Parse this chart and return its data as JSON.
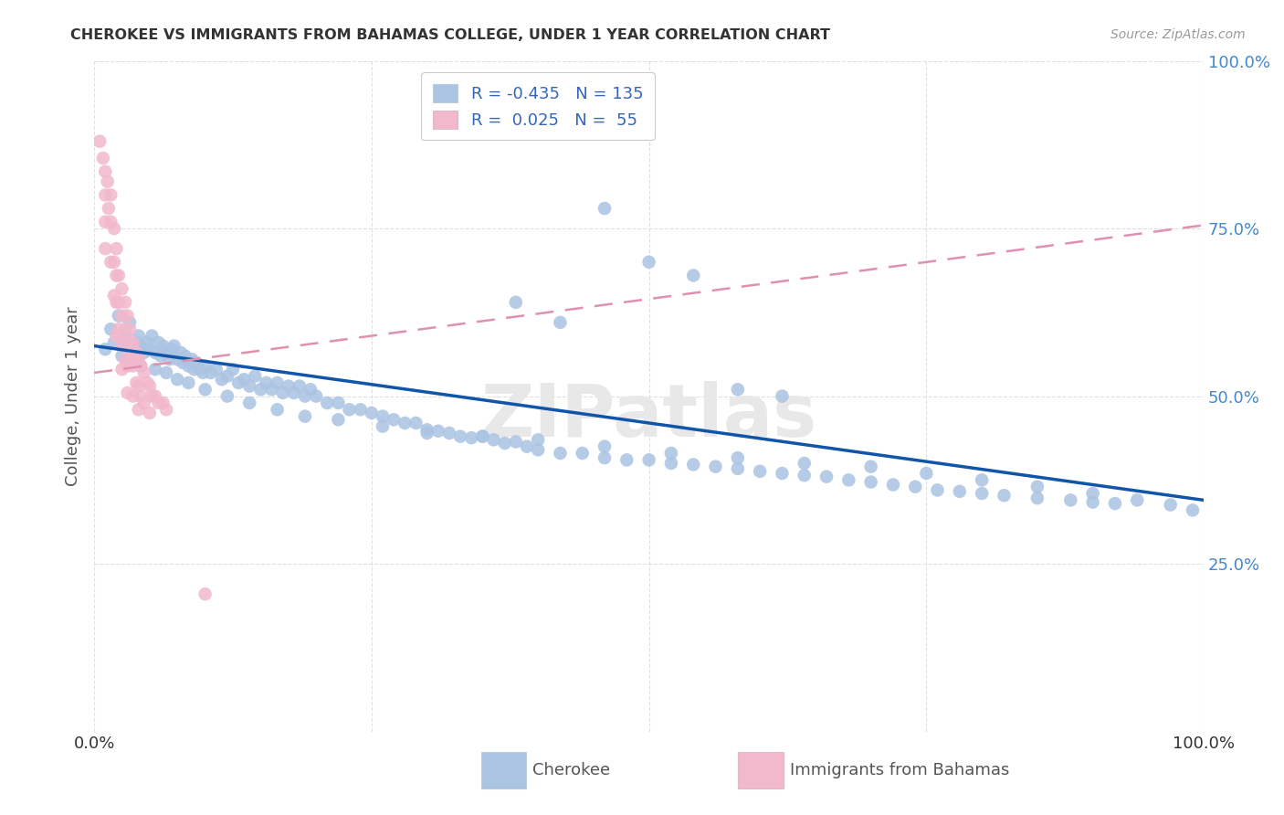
{
  "title": "CHEROKEE VS IMMIGRANTS FROM BAHAMAS COLLEGE, UNDER 1 YEAR CORRELATION CHART",
  "source": "Source: ZipAtlas.com",
  "ylabel": "College, Under 1 year",
  "xlim": [
    0.0,
    1.0
  ],
  "ylim": [
    0.0,
    1.0
  ],
  "yticks": [
    0.25,
    0.5,
    0.75,
    1.0
  ],
  "ytick_labels": [
    "25.0%",
    "50.0%",
    "75.0%",
    "100.0%"
  ],
  "xticks": [
    0.0,
    0.25,
    0.5,
    0.75,
    1.0
  ],
  "xtick_labels": [
    "0.0%",
    "",
    "",
    "",
    "100.0%"
  ],
  "blue_R": -0.435,
  "blue_N": 135,
  "pink_R": 0.025,
  "pink_N": 55,
  "blue_color": "#aac4e2",
  "pink_color": "#f2b8cc",
  "blue_line_color": "#1155aa",
  "pink_line_color": "#e090b0",
  "background_color": "#ffffff",
  "watermark": "ZIPatlas",
  "blue_line_x0": 0.0,
  "blue_line_y0": 0.575,
  "blue_line_x1": 1.0,
  "blue_line_y1": 0.345,
  "pink_line_x0": 0.0,
  "pink_line_y0": 0.535,
  "pink_line_x1": 1.0,
  "pink_line_y1": 0.755,
  "blue_points_x": [
    0.01,
    0.015,
    0.018,
    0.022,
    0.025,
    0.028,
    0.03,
    0.032,
    0.035,
    0.038,
    0.04,
    0.042,
    0.045,
    0.048,
    0.05,
    0.052,
    0.055,
    0.058,
    0.06,
    0.062,
    0.065,
    0.068,
    0.07,
    0.072,
    0.075,
    0.078,
    0.08,
    0.082,
    0.085,
    0.088,
    0.09,
    0.092,
    0.095,
    0.098,
    0.1,
    0.105,
    0.11,
    0.115,
    0.12,
    0.125,
    0.13,
    0.135,
    0.14,
    0.145,
    0.15,
    0.155,
    0.16,
    0.165,
    0.17,
    0.175,
    0.18,
    0.185,
    0.19,
    0.195,
    0.2,
    0.21,
    0.22,
    0.23,
    0.24,
    0.25,
    0.26,
    0.27,
    0.28,
    0.29,
    0.3,
    0.31,
    0.32,
    0.33,
    0.34,
    0.35,
    0.36,
    0.37,
    0.38,
    0.39,
    0.4,
    0.42,
    0.44,
    0.46,
    0.48,
    0.5,
    0.52,
    0.54,
    0.56,
    0.58,
    0.6,
    0.62,
    0.64,
    0.66,
    0.68,
    0.7,
    0.72,
    0.74,
    0.76,
    0.78,
    0.8,
    0.82,
    0.85,
    0.88,
    0.9,
    0.92,
    0.038,
    0.042,
    0.055,
    0.065,
    0.075,
    0.085,
    0.1,
    0.12,
    0.14,
    0.165,
    0.19,
    0.22,
    0.26,
    0.3,
    0.35,
    0.4,
    0.46,
    0.52,
    0.58,
    0.64,
    0.7,
    0.75,
    0.8,
    0.85,
    0.9,
    0.94,
    0.97,
    0.99,
    0.38,
    0.42,
    0.46,
    0.5,
    0.54,
    0.58,
    0.62
  ],
  "blue_points_y": [
    0.57,
    0.6,
    0.58,
    0.62,
    0.56,
    0.59,
    0.575,
    0.61,
    0.555,
    0.58,
    0.59,
    0.575,
    0.565,
    0.58,
    0.57,
    0.59,
    0.565,
    0.58,
    0.56,
    0.575,
    0.565,
    0.555,
    0.57,
    0.575,
    0.555,
    0.565,
    0.55,
    0.56,
    0.545,
    0.555,
    0.54,
    0.55,
    0.54,
    0.535,
    0.545,
    0.535,
    0.54,
    0.525,
    0.53,
    0.54,
    0.52,
    0.525,
    0.515,
    0.53,
    0.51,
    0.52,
    0.51,
    0.52,
    0.505,
    0.515,
    0.505,
    0.515,
    0.5,
    0.51,
    0.5,
    0.49,
    0.49,
    0.48,
    0.48,
    0.475,
    0.47,
    0.465,
    0.46,
    0.46,
    0.45,
    0.448,
    0.445,
    0.44,
    0.438,
    0.44,
    0.435,
    0.43,
    0.432,
    0.425,
    0.42,
    0.415,
    0.415,
    0.408,
    0.405,
    0.405,
    0.4,
    0.398,
    0.395,
    0.392,
    0.388,
    0.385,
    0.382,
    0.38,
    0.375,
    0.372,
    0.368,
    0.365,
    0.36,
    0.358,
    0.355,
    0.352,
    0.348,
    0.345,
    0.342,
    0.34,
    0.555,
    0.545,
    0.54,
    0.535,
    0.525,
    0.52,
    0.51,
    0.5,
    0.49,
    0.48,
    0.47,
    0.465,
    0.455,
    0.445,
    0.44,
    0.435,
    0.425,
    0.415,
    0.408,
    0.4,
    0.395,
    0.385,
    0.375,
    0.365,
    0.355,
    0.345,
    0.338,
    0.33,
    0.64,
    0.61,
    0.78,
    0.7,
    0.68,
    0.51,
    0.5
  ],
  "pink_points_x": [
    0.005,
    0.008,
    0.01,
    0.01,
    0.01,
    0.01,
    0.012,
    0.013,
    0.015,
    0.015,
    0.015,
    0.018,
    0.018,
    0.018,
    0.02,
    0.02,
    0.02,
    0.02,
    0.022,
    0.022,
    0.022,
    0.025,
    0.025,
    0.025,
    0.025,
    0.028,
    0.028,
    0.028,
    0.03,
    0.03,
    0.03,
    0.03,
    0.032,
    0.032,
    0.035,
    0.035,
    0.035,
    0.038,
    0.038,
    0.04,
    0.04,
    0.04,
    0.042,
    0.042,
    0.045,
    0.045,
    0.048,
    0.05,
    0.05,
    0.052,
    0.055,
    0.058,
    0.062,
    0.065,
    0.1
  ],
  "pink_points_y": [
    0.88,
    0.855,
    0.835,
    0.8,
    0.76,
    0.72,
    0.82,
    0.78,
    0.8,
    0.76,
    0.7,
    0.75,
    0.7,
    0.65,
    0.72,
    0.68,
    0.64,
    0.59,
    0.68,
    0.64,
    0.6,
    0.66,
    0.62,
    0.58,
    0.54,
    0.64,
    0.6,
    0.555,
    0.62,
    0.58,
    0.545,
    0.505,
    0.6,
    0.555,
    0.58,
    0.545,
    0.5,
    0.565,
    0.52,
    0.555,
    0.515,
    0.48,
    0.545,
    0.5,
    0.535,
    0.49,
    0.52,
    0.515,
    0.475,
    0.5,
    0.5,
    0.49,
    0.49,
    0.48,
    0.205
  ]
}
